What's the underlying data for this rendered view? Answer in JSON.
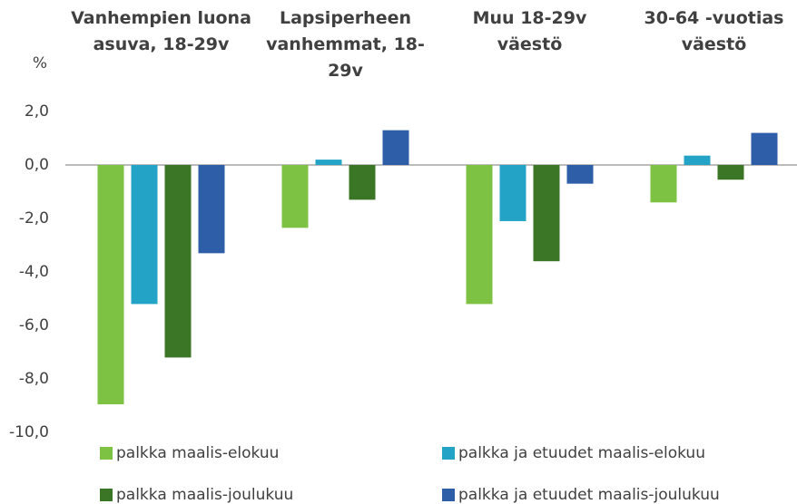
{
  "chart_data": {
    "type": "bar",
    "y_label": "%",
    "categories": [
      "Vanhempien luona asuva, 18-29v",
      "Lapsiperheen vanhemmat, 18-29v",
      "Muu 18-29v väestö",
      "30-64 -vuotias väestö"
    ],
    "series": [
      {
        "name": "palkka maalis-elokuu",
        "color": "#7dc242",
        "values": [
          -8.95,
          -2.35,
          -5.2,
          -1.4
        ]
      },
      {
        "name": "palkka ja etuudet maalis-elokuu",
        "color": "#23a3c6",
        "values": [
          -5.2,
          0.2,
          -2.1,
          0.35
        ]
      },
      {
        "name": "palkka maalis-joulukuu",
        "color": "#3b7526",
        "values": [
          -7.2,
          -1.3,
          -3.6,
          -0.55
        ]
      },
      {
        "name": "palkka ja etuudet maalis-joulukuu",
        "color": "#2e5ea8",
        "values": [
          -3.3,
          1.3,
          -0.7,
          1.2
        ]
      }
    ],
    "ylim": [
      -10,
      2
    ],
    "yticks": [
      {
        "value": 2,
        "label": "2,0"
      },
      {
        "value": 0,
        "label": "0,0"
      },
      {
        "value": -2,
        "label": "-2,0"
      },
      {
        "value": -4,
        "label": "-4,0"
      },
      {
        "value": -6,
        "label": "-6,0"
      },
      {
        "value": -8,
        "label": "-8,0"
      },
      {
        "value": -10,
        "label": "-10,0"
      }
    ],
    "grid": false
  }
}
